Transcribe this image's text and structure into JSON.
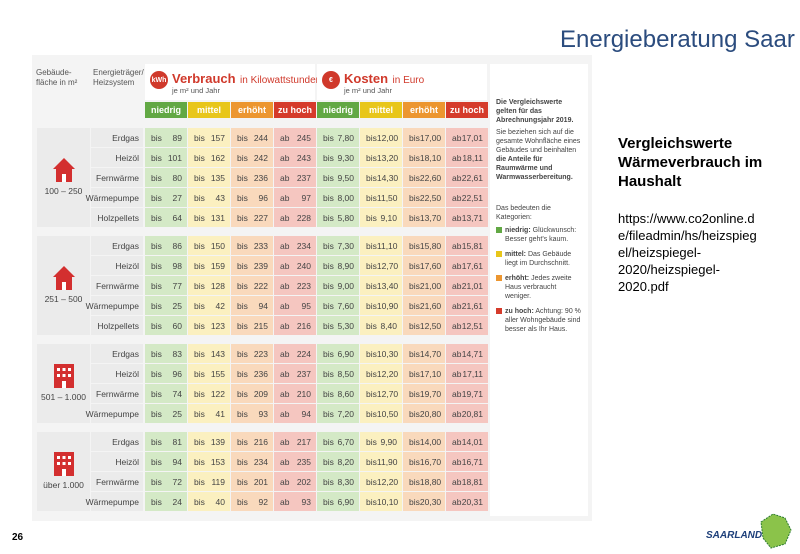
{
  "header": {
    "title": "Energieberatung Saar"
  },
  "table": {
    "col_area": [
      "Gebäude-",
      "fläche in m²"
    ],
    "col_system": [
      "Energieträger/",
      "Heizsystem"
    ],
    "consumption": {
      "icon": "kWh",
      "title": "Verbrauch",
      "title_suffix": "in Kilowattstunden",
      "unit": "je m² und Jahr"
    },
    "costs": {
      "icon": "€",
      "title": "Kosten",
      "title_suffix": "in Euro",
      "unit": "je m² und Jahr"
    },
    "categories": [
      "niedrig",
      "mittel",
      "erhöht",
      "zu hoch"
    ],
    "groups": [
      {
        "area": "100 – 250",
        "rows": [
          {
            "system": "Erdgas",
            "consumption": [
              [
                "bis",
                "89"
              ],
              [
                "bis",
                "157"
              ],
              [
                "bis",
                "244"
              ],
              [
                "ab",
                "245"
              ]
            ],
            "costs": [
              [
                "bis",
                "7,80"
              ],
              [
                "bis",
                "12,00"
              ],
              [
                "bis",
                "17,00"
              ],
              [
                "ab",
                "17,01"
              ]
            ]
          },
          {
            "system": "Heizöl",
            "consumption": [
              [
                "bis",
                "101"
              ],
              [
                "bis",
                "162"
              ],
              [
                "bis",
                "242"
              ],
              [
                "ab",
                "243"
              ]
            ],
            "costs": [
              [
                "bis",
                "9,30"
              ],
              [
                "bis",
                "13,20"
              ],
              [
                "bis",
                "18,10"
              ],
              [
                "ab",
                "18,11"
              ]
            ]
          },
          {
            "system": "Fernwärme",
            "consumption": [
              [
                "bis",
                "80"
              ],
              [
                "bis",
                "135"
              ],
              [
                "bis",
                "236"
              ],
              [
                "ab",
                "237"
              ]
            ],
            "costs": [
              [
                "bis",
                "9,50"
              ],
              [
                "bis",
                "14,30"
              ],
              [
                "bis",
                "22,60"
              ],
              [
                "ab",
                "22,61"
              ]
            ]
          },
          {
            "system": "Wärmepumpe",
            "consumption": [
              [
                "bis",
                "27"
              ],
              [
                "bis",
                "43"
              ],
              [
                "bis",
                "96"
              ],
              [
                "ab",
                "97"
              ]
            ],
            "costs": [
              [
                "bis",
                "8,00"
              ],
              [
                "bis",
                "11,50"
              ],
              [
                "bis",
                "22,50"
              ],
              [
                "ab",
                "22,51"
              ]
            ]
          },
          {
            "system": "Holzpellets",
            "consumption": [
              [
                "bis",
                "64"
              ],
              [
                "bis",
                "131"
              ],
              [
                "bis",
                "227"
              ],
              [
                "ab",
                "228"
              ]
            ],
            "costs": [
              [
                "bis",
                "5,80"
              ],
              [
                "bis",
                "9,10"
              ],
              [
                "bis",
                "13,70"
              ],
              [
                "ab",
                "13,71"
              ]
            ]
          }
        ]
      },
      {
        "area": "251 – 500",
        "rows": [
          {
            "system": "Erdgas",
            "consumption": [
              [
                "bis",
                "86"
              ],
              [
                "bis",
                "150"
              ],
              [
                "bis",
                "233"
              ],
              [
                "ab",
                "234"
              ]
            ],
            "costs": [
              [
                "bis",
                "7,30"
              ],
              [
                "bis",
                "11,10"
              ],
              [
                "bis",
                "15,80"
              ],
              [
                "ab",
                "15,81"
              ]
            ]
          },
          {
            "system": "Heizöl",
            "consumption": [
              [
                "bis",
                "98"
              ],
              [
                "bis",
                "159"
              ],
              [
                "bis",
                "239"
              ],
              [
                "ab",
                "240"
              ]
            ],
            "costs": [
              [
                "bis",
                "8,90"
              ],
              [
                "bis",
                "12,70"
              ],
              [
                "bis",
                "17,60"
              ],
              [
                "ab",
                "17,61"
              ]
            ]
          },
          {
            "system": "Fernwärme",
            "consumption": [
              [
                "bis",
                "77"
              ],
              [
                "bis",
                "128"
              ],
              [
                "bis",
                "222"
              ],
              [
                "ab",
                "223"
              ]
            ],
            "costs": [
              [
                "bis",
                "9,00"
              ],
              [
                "bis",
                "13,40"
              ],
              [
                "bis",
                "21,00"
              ],
              [
                "ab",
                "21,01"
              ]
            ]
          },
          {
            "system": "Wärmepumpe",
            "consumption": [
              [
                "bis",
                "25"
              ],
              [
                "bis",
                "42"
              ],
              [
                "bis",
                "94"
              ],
              [
                "ab",
                "95"
              ]
            ],
            "costs": [
              [
                "bis",
                "7,60"
              ],
              [
                "bis",
                "10,90"
              ],
              [
                "bis",
                "21,60"
              ],
              [
                "ab",
                "21,61"
              ]
            ]
          },
          {
            "system": "Holzpellets",
            "consumption": [
              [
                "bis",
                "60"
              ],
              [
                "bis",
                "123"
              ],
              [
                "bis",
                "215"
              ],
              [
                "ab",
                "216"
              ]
            ],
            "costs": [
              [
                "bis",
                "5,30"
              ],
              [
                "bis",
                "8,40"
              ],
              [
                "bis",
                "12,50"
              ],
              [
                "ab",
                "12,51"
              ]
            ]
          }
        ]
      },
      {
        "area": "501 – 1.000",
        "rows": [
          {
            "system": "Erdgas",
            "consumption": [
              [
                "bis",
                "83"
              ],
              [
                "bis",
                "143"
              ],
              [
                "bis",
                "223"
              ],
              [
                "ab",
                "224"
              ]
            ],
            "costs": [
              [
                "bis",
                "6,90"
              ],
              [
                "bis",
                "10,30"
              ],
              [
                "bis",
                "14,70"
              ],
              [
                "ab",
                "14,71"
              ]
            ]
          },
          {
            "system": "Heizöl",
            "consumption": [
              [
                "bis",
                "96"
              ],
              [
                "bis",
                "155"
              ],
              [
                "bis",
                "236"
              ],
              [
                "ab",
                "237"
              ]
            ],
            "costs": [
              [
                "bis",
                "8,50"
              ],
              [
                "bis",
                "12,20"
              ],
              [
                "bis",
                "17,10"
              ],
              [
                "ab",
                "17,11"
              ]
            ]
          },
          {
            "system": "Fernwärme",
            "consumption": [
              [
                "bis",
                "74"
              ],
              [
                "bis",
                "122"
              ],
              [
                "bis",
                "209"
              ],
              [
                "ab",
                "210"
              ]
            ],
            "costs": [
              [
                "bis",
                "8,60"
              ],
              [
                "bis",
                "12,70"
              ],
              [
                "bis",
                "19,70"
              ],
              [
                "ab",
                "19,71"
              ]
            ]
          },
          {
            "system": "Wärmepumpe",
            "consumption": [
              [
                "bis",
                "25"
              ],
              [
                "bis",
                "41"
              ],
              [
                "bis",
                "93"
              ],
              [
                "ab",
                "94"
              ]
            ],
            "costs": [
              [
                "bis",
                "7,20"
              ],
              [
                "bis",
                "10,50"
              ],
              [
                "bis",
                "20,80"
              ],
              [
                "ab",
                "20,81"
              ]
            ]
          }
        ]
      },
      {
        "area": "über 1.000",
        "rows": [
          {
            "system": "Erdgas",
            "consumption": [
              [
                "bis",
                "81"
              ],
              [
                "bis",
                "139"
              ],
              [
                "bis",
                "216"
              ],
              [
                "ab",
                "217"
              ]
            ],
            "costs": [
              [
                "bis",
                "6,70"
              ],
              [
                "bis",
                "9,90"
              ],
              [
                "bis",
                "14,00"
              ],
              [
                "ab",
                "14,01"
              ]
            ]
          },
          {
            "system": "Heizöl",
            "consumption": [
              [
                "bis",
                "94"
              ],
              [
                "bis",
                "153"
              ],
              [
                "bis",
                "234"
              ],
              [
                "ab",
                "235"
              ]
            ],
            "costs": [
              [
                "bis",
                "8,20"
              ],
              [
                "bis",
                "11,90"
              ],
              [
                "bis",
                "16,70"
              ],
              [
                "ab",
                "16,71"
              ]
            ]
          },
          {
            "system": "Fernwärme",
            "consumption": [
              [
                "bis",
                "72"
              ],
              [
                "bis",
                "119"
              ],
              [
                "bis",
                "201"
              ],
              [
                "ab",
                "202"
              ]
            ],
            "costs": [
              [
                "bis",
                "8,30"
              ],
              [
                "bis",
                "12,20"
              ],
              [
                "bis",
                "18,80"
              ],
              [
                "ab",
                "18,81"
              ]
            ]
          },
          {
            "system": "Wärmepumpe",
            "consumption": [
              [
                "bis",
                "24"
              ],
              [
                "bis",
                "40"
              ],
              [
                "bis",
                "92"
              ],
              [
                "ab",
                "93"
              ]
            ],
            "costs": [
              [
                "bis",
                "6,90"
              ],
              [
                "bis",
                "10,10"
              ],
              [
                "bis",
                "20,30"
              ],
              [
                "ab",
                "20,31"
              ]
            ]
          }
        ]
      }
    ]
  },
  "sidebar": {
    "intro": "Die Vergleichswerte gelten für das Abrechnungsjahr 2019.",
    "text": "Sie beziehen sich auf die gesamte Wohnfläche eines Gebäudes und beinhalten ",
    "text_bold": "die Anteile für Raumwärme und Warmwasserbereitung.",
    "legend_title": "Das bedeuten die Kategorien:",
    "legend": [
      {
        "label": "niedrig:",
        "text": "Glückwunsch: Besser geht's kaum."
      },
      {
        "label": "mittel:",
        "text": "Das Gebäude liegt im Durchschnitt."
      },
      {
        "label": "erhöht:",
        "text": "Jedes zweite Haus verbraucht weniger."
      },
      {
        "label": "zu hoch:",
        "text": "Achtung: 90 % aller Wohngebäude sind besser als Ihr Haus."
      }
    ]
  },
  "note": {
    "title": "Vergleichswerte Wärmeverbrauch im Haushalt",
    "url": "https://www.co2online.de/fileadmin/hs/heizspiegel/heizspiegel-2020/heizspiegel-2020.pdf"
  },
  "page_number": "26",
  "logo": "SAARLAND"
}
